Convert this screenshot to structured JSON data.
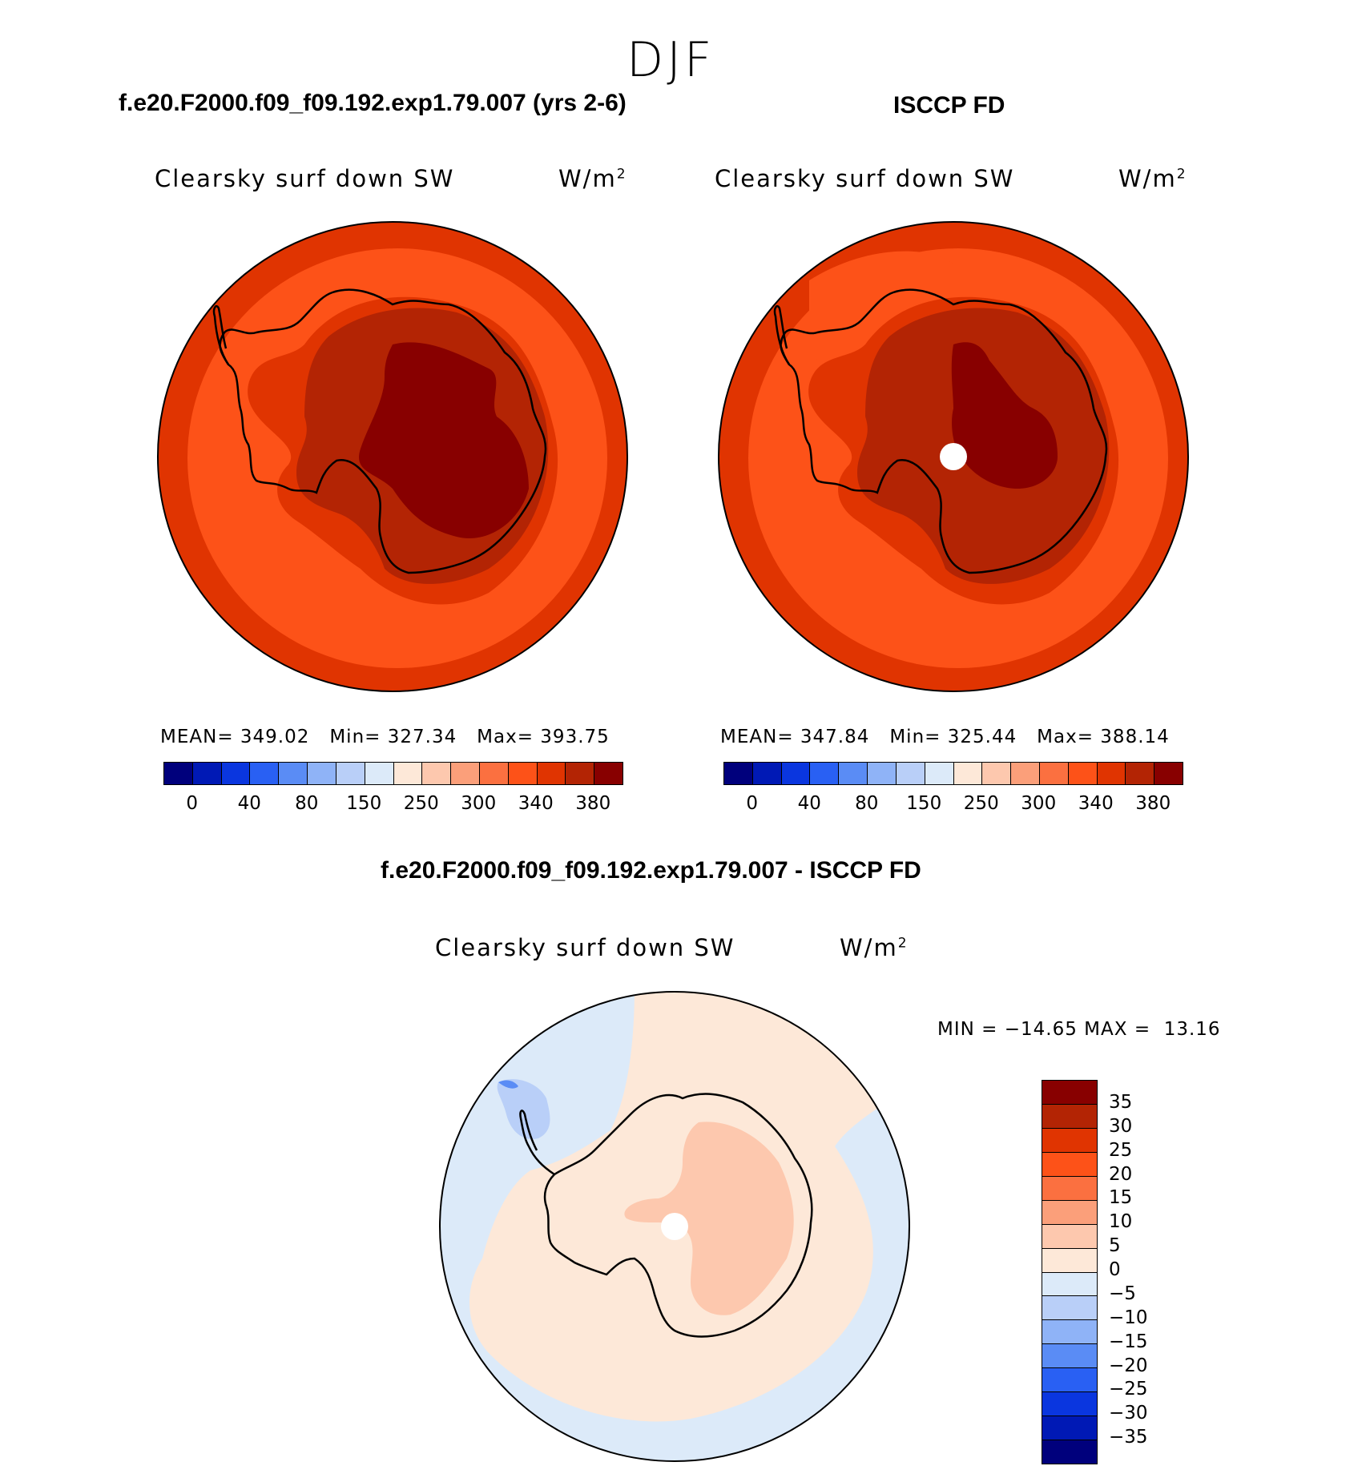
{
  "season": "DJF",
  "panels": [
    {
      "title": "f.e20.F2000.f09_f09.192.exp1.79.007 (yrs 2-6)",
      "variable": "Clearsky surf down SW",
      "units_base": "W/m",
      "units_sup": "2",
      "mean_label": "MEAN=",
      "mean": "349.02",
      "min_label": "Min=",
      "min": "327.34",
      "max_label": "Max=",
      "max": "393.75"
    },
    {
      "title": "ISCCP FD",
      "variable": "Clearsky surf down SW",
      "units_base": "W/m",
      "units_sup": "2",
      "mean_label": "MEAN=",
      "mean": "347.84",
      "min_label": "Min=",
      "min": "325.44",
      "max_label": "Max=",
      "max": "388.14"
    }
  ],
  "colorbar_top": {
    "colors": [
      "#00007c",
      "#0019b5",
      "#0a36df",
      "#2960f3",
      "#5a8cf5",
      "#8fb3f7",
      "#b9cff8",
      "#dceaf9",
      "#fde8d8",
      "#fdc8ae",
      "#fb9f7a",
      "#fb7040",
      "#fd5218",
      "#e03401",
      "#b32404",
      "#880000"
    ],
    "ticks": [
      "0",
      "40",
      "80",
      "150",
      "250",
      "300",
      "340",
      "380"
    ]
  },
  "diff_panel": {
    "title": "f.e20.F2000.f09_f09.192.exp1.79.007 - ISCCP FD",
    "variable": "Clearsky surf down SW",
    "units_base": "W/m",
    "units_sup": "2",
    "min_label": "MIN =",
    "min": "−14.65",
    "max_label": "MAX =",
    "max": "13.16"
  },
  "colorbar_diff": {
    "colors": [
      "#880000",
      "#b32404",
      "#e03401",
      "#fd5218",
      "#fb7040",
      "#fb9f7a",
      "#fdc8ae",
      "#fde8d8",
      "#dceaf9",
      "#b9cff8",
      "#8fb3f7",
      "#5a8cf5",
      "#2960f3",
      "#0a36df",
      "#0019b5",
      "#00007c"
    ],
    "ticks": [
      "35",
      "30",
      "25",
      "20",
      "15",
      "10",
      "5",
      "0",
      "−5",
      "−10",
      "−15",
      "−20",
      "−25",
      "−30",
      "−35"
    ]
  }
}
